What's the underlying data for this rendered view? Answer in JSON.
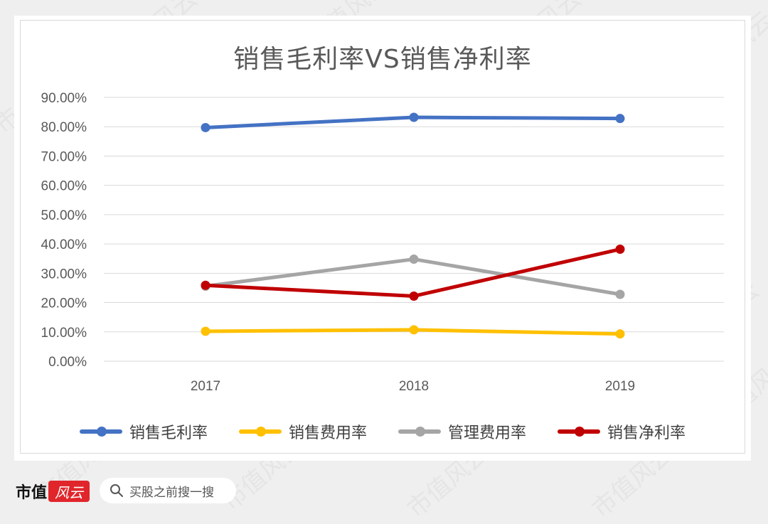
{
  "chart_data": {
    "type": "line",
    "title": "销售毛利率VS销售净利率",
    "categories": [
      "2017",
      "2018",
      "2019"
    ],
    "y_ticks": [
      "0.00%",
      "10.00%",
      "20.00%",
      "30.00%",
      "40.00%",
      "50.00%",
      "60.00%",
      "70.00%",
      "80.00%",
      "90.00%"
    ],
    "ylim": [
      0,
      90
    ],
    "grid": true,
    "legend_position": "bottom",
    "series": [
      {
        "name": "销售毛利率",
        "values": [
          79.7,
          83.2,
          82.8
        ],
        "color": "#4472c4"
      },
      {
        "name": "销售费用率",
        "values": [
          10.2,
          10.7,
          9.3
        ],
        "color": "#ffc000"
      },
      {
        "name": "管理费用率",
        "values": [
          25.6,
          34.8,
          22.8
        ],
        "color": "#a5a5a5"
      },
      {
        "name": "销售净利率",
        "values": [
          25.9,
          22.2,
          38.2
        ],
        "color": "#c00000"
      }
    ]
  },
  "watermark": "市值风云",
  "footer": {
    "logo_text": "市值",
    "logo_seal": "风云",
    "search_icon": "search-icon",
    "search_text": "买股之前搜一搜"
  }
}
